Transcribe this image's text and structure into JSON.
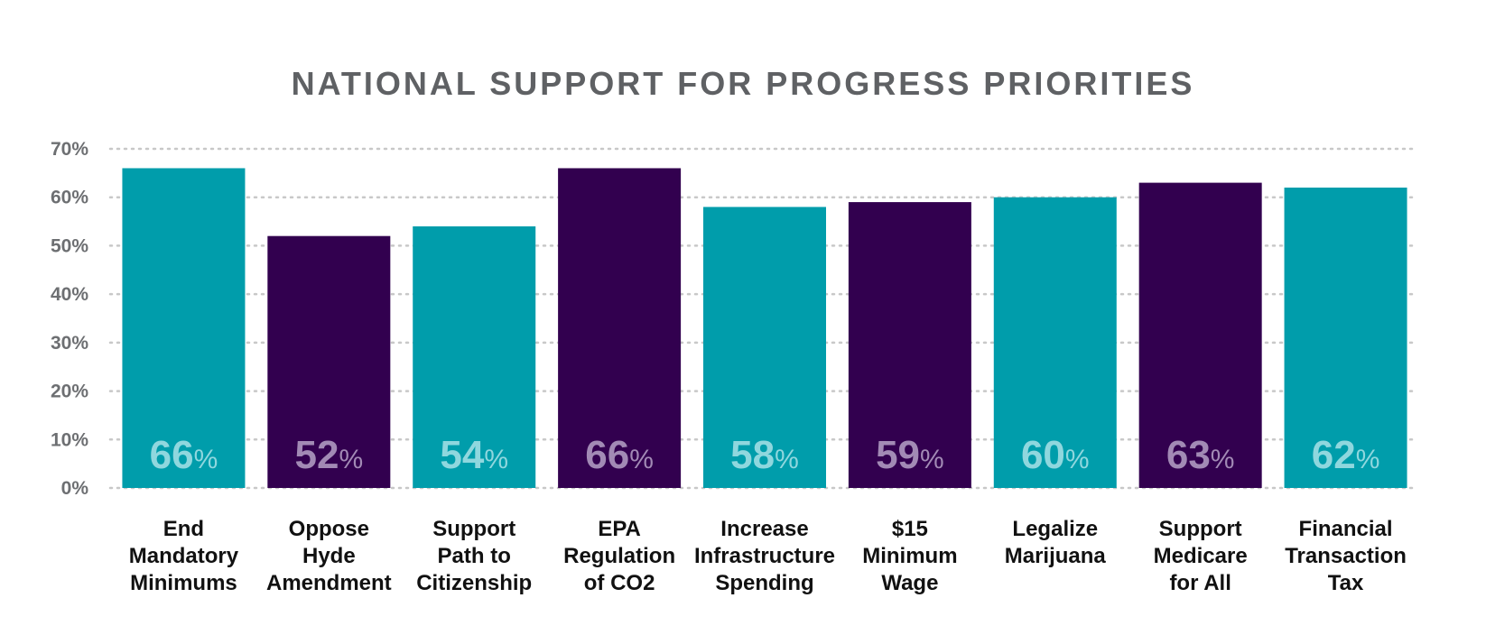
{
  "chart_data": {
    "type": "bar",
    "title": "NATIONAL SUPPORT FOR PROGRESS PRIORITIES",
    "xlabel": "",
    "ylabel": "",
    "ylim": [
      0,
      70
    ],
    "yticks": [
      0,
      10,
      20,
      30,
      40,
      50,
      60,
      70
    ],
    "ytick_suffix": "%",
    "grid": true,
    "categories": [
      "End Mandatory Minimums",
      "Oppose Hyde Amendment",
      "Support Path to Citizenship",
      "EPA Regulation of CO2",
      "Increase Infrastructure Spending",
      "$15 Minimum Wage",
      "Legalize Marijuana",
      "Support Medicare for All",
      "Financial Transaction Tax"
    ],
    "category_lines": [
      [
        "End",
        "Mandatory",
        "Minimums"
      ],
      [
        "Oppose",
        "Hyde",
        "Amendment"
      ],
      [
        "Support",
        "Path to",
        "Citizenship"
      ],
      [
        "EPA",
        "Regulation",
        "of CO2"
      ],
      [
        "Increase",
        "Infrastructure",
        "Spending"
      ],
      [
        "$15",
        "Minimum",
        "Wage"
      ],
      [
        "Legalize",
        "Marijuana"
      ],
      [
        "Support",
        "Medicare",
        "for All"
      ],
      [
        "Financial",
        "Transaction",
        "Tax"
      ]
    ],
    "values": [
      66,
      52,
      54,
      66,
      58,
      59,
      60,
      63,
      62
    ],
    "value_suffix": "%",
    "bar_colors": [
      "#009dab",
      "#32004f",
      "#009dab",
      "#32004f",
      "#009dab",
      "#32004f",
      "#009dab",
      "#32004f",
      "#009dab"
    ],
    "label_colors": [
      "#8fd7de",
      "#a28ab5",
      "#8fd7de",
      "#a28ab5",
      "#8fd7de",
      "#a28ab5",
      "#8fd7de",
      "#a28ab5",
      "#8fd7de"
    ]
  },
  "colors": {
    "teal": "#009dab",
    "purple": "#32004f",
    "grid": "#c8c8c8",
    "title": "#5f6164"
  }
}
